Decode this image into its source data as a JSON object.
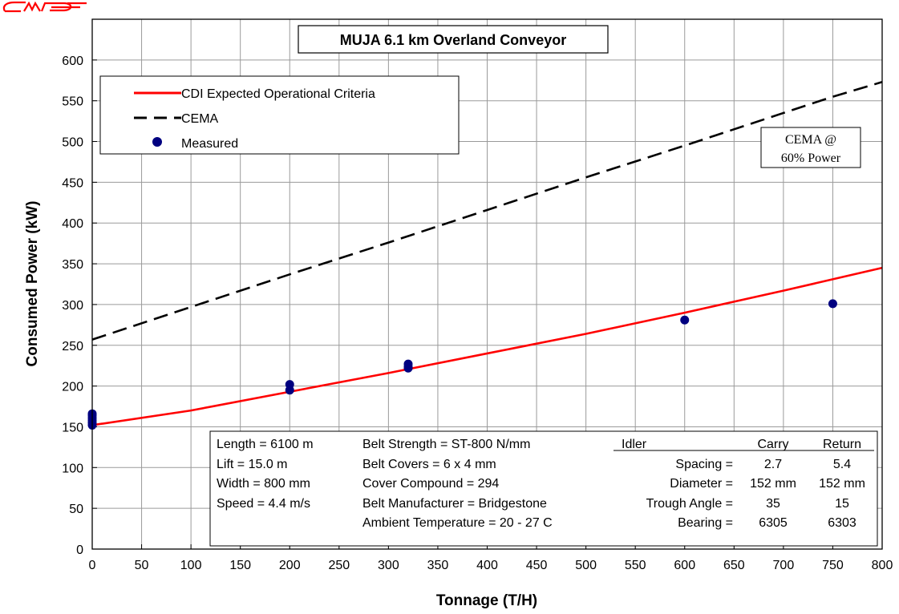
{
  "chart_data": {
    "type": "line",
    "title": "MUJA 6.1 km Overland Conveyor",
    "xlabel": "Tonnage (T/H)",
    "ylabel": "Consumed Power (kW)",
    "xlim": [
      0,
      800
    ],
    "ylim": [
      0,
      650
    ],
    "x_ticks": [
      0,
      50,
      100,
      150,
      200,
      250,
      300,
      350,
      400,
      450,
      500,
      550,
      600,
      650,
      700,
      750,
      800
    ],
    "y_ticks": [
      0,
      50,
      100,
      150,
      200,
      250,
      300,
      350,
      400,
      450,
      500,
      550,
      600
    ],
    "grid": true,
    "legend_position": "top-left",
    "series": [
      {
        "name": "CDI Expected Operational Criteria",
        "kind": "line",
        "style": "solid",
        "color": "#ff0000",
        "x": [
          0,
          100,
          200,
          300,
          400,
          500,
          600,
          700,
          800
        ],
        "y": [
          152,
          170,
          193,
          216,
          240,
          264,
          290,
          317,
          345
        ]
      },
      {
        "name": "CEMA",
        "kind": "line",
        "style": "dashed",
        "color": "#000000",
        "x": [
          0,
          100,
          200,
          300,
          400,
          500,
          600,
          700,
          750,
          800
        ],
        "y": [
          257,
          297,
          337,
          376,
          416,
          456,
          495,
          535,
          555,
          573
        ]
      },
      {
        "name": "Measured",
        "kind": "scatter",
        "color": "#000080",
        "x": [
          0,
          0,
          0,
          0,
          0,
          0,
          200,
          200,
          320,
          320,
          320,
          600,
          750
        ],
        "y": [
          152,
          155,
          158,
          161,
          164,
          166,
          195,
          202,
          222,
          224,
          227,
          281,
          301
        ]
      }
    ],
    "annotations": {
      "cema_note": [
        "CEMA @",
        "60% Power"
      ]
    },
    "specs": {
      "col1": [
        "Length = 6100 m",
        "Lift = 15.0 m",
        "Width = 800 mm",
        "Speed = 4.4 m/s"
      ],
      "col2": [
        "Belt Strength = ST-800 N/mm",
        "Belt Covers = 6 x 4 mm",
        "Cover Compound = 294",
        "Belt Manufacturer = Bridgestone",
        "Ambient Temperature = 20 - 27 C"
      ],
      "idler_header": {
        "label": "Idler",
        "carry": "Carry",
        "return": "Return"
      },
      "idler_rows": [
        {
          "label": "Spacing =",
          "carry": "2.7",
          "return": "5.4"
        },
        {
          "label": "Diameter =",
          "carry": "152 mm",
          "return": "152 mm"
        },
        {
          "label": "Trough Angle =",
          "carry": "35",
          "return": "15"
        },
        {
          "label": "Bearing =",
          "carry": "6305",
          "return": "6303"
        }
      ]
    }
  },
  "logo": {
    "text": "CMP",
    "color": "#ff0000"
  }
}
